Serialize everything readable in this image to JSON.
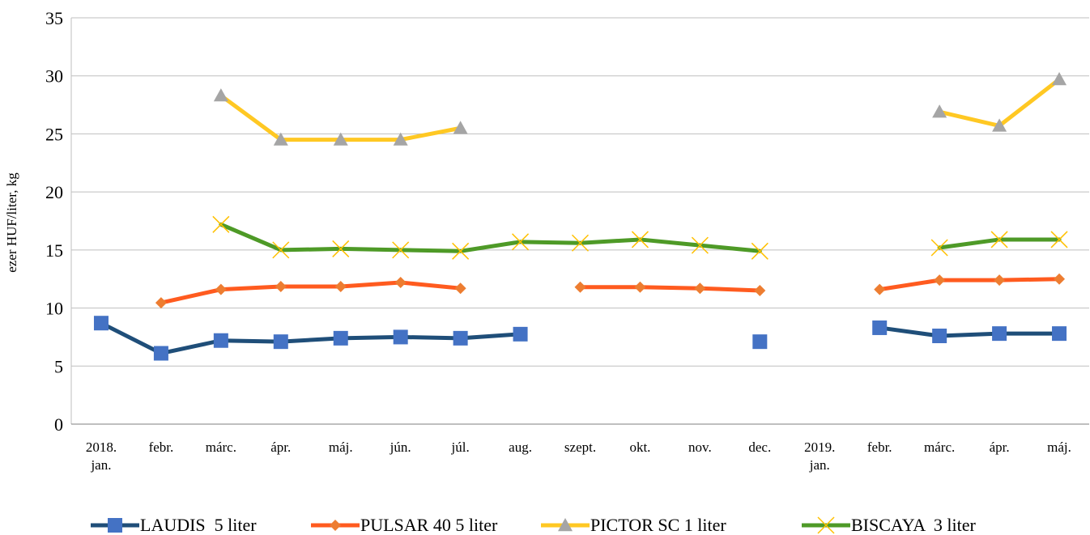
{
  "chart_data": {
    "type": "line",
    "ylabel": "ezer HUF/liter, kg",
    "ylim": [
      0,
      35
    ],
    "yticks": [
      0,
      5,
      10,
      15,
      20,
      25,
      30,
      35
    ],
    "grid": "horizontal",
    "legend_position": "bottom",
    "categories": [
      [
        "2018.",
        "jan."
      ],
      [
        "febr."
      ],
      [
        "márc."
      ],
      [
        "ápr."
      ],
      [
        "máj."
      ],
      [
        "jún."
      ],
      [
        "júl."
      ],
      [
        "aug."
      ],
      [
        "szept."
      ],
      [
        "okt."
      ],
      [
        "nov."
      ],
      [
        "dec."
      ],
      [
        "2019.",
        "jan."
      ],
      [
        "febr."
      ],
      [
        "márc."
      ],
      [
        "ápr."
      ],
      [
        "máj."
      ]
    ],
    "series": [
      {
        "name": "LAUDIS  5 liter",
        "color": "#1F4E79",
        "marker": "square",
        "marker_color": "#4472C4",
        "values": [
          8.7,
          6.1,
          7.2,
          7.1,
          7.4,
          7.5,
          7.4,
          7.75,
          null,
          null,
          null,
          7.1,
          null,
          8.3,
          7.6,
          7.8,
          7.8
        ]
      },
      {
        "name": "PULSAR 40 5 liter",
        "color": "#FF5B1F",
        "marker": "diamond",
        "marker_color": "#ED7D31",
        "values": [
          null,
          10.45,
          11.6,
          11.85,
          11.85,
          12.2,
          11.7,
          null,
          11.8,
          11.8,
          11.7,
          11.5,
          null,
          11.6,
          12.4,
          12.4,
          12.5
        ]
      },
      {
        "name": "PICTOR SC 1 liter",
        "color": "#FFC823",
        "marker": "triangle",
        "marker_color": "#A5A5A5",
        "values": [
          null,
          null,
          28.3,
          24.5,
          24.5,
          24.5,
          25.5,
          null,
          null,
          null,
          null,
          null,
          null,
          null,
          26.9,
          25.7,
          29.7
        ]
      },
      {
        "name": "BISCAYA  3 liter",
        "color": "#4E9A27",
        "marker": "x",
        "marker_color": "#FFC000",
        "values": [
          null,
          null,
          17.2,
          15.0,
          15.1,
          15.0,
          14.9,
          15.7,
          15.6,
          15.9,
          15.4,
          14.9,
          null,
          null,
          15.2,
          15.9,
          15.9
        ]
      }
    ]
  }
}
